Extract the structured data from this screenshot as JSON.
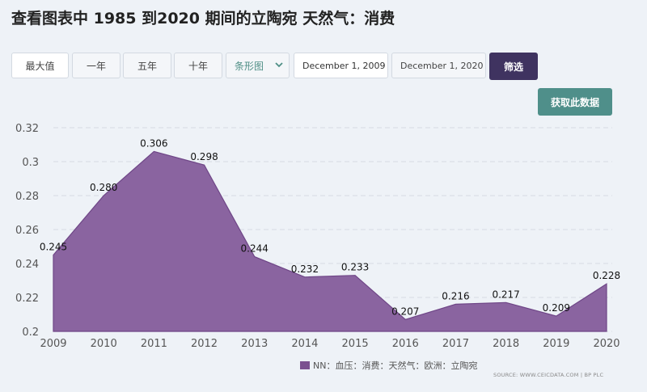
{
  "page": {
    "title": "查看图表中 1985 到2020 期间的立陶宛 天然气：消费"
  },
  "toolbar": {
    "range_buttons": [
      "最大值",
      "一年",
      "五年",
      "十年"
    ],
    "chart_type_select": "条形图",
    "start_date": "December 1, 2009",
    "end_date": "December 1, 2020",
    "filter_label": "筛选",
    "get_data_label": "获取此数据"
  },
  "colors": {
    "series_fill": "#8a64a0",
    "series_stroke": "#6f4687",
    "legend_swatch": "#7b5190",
    "filter_button": "#3f3360",
    "get_data_button": "#4f8f8a"
  },
  "icons": {
    "select_toggle": "chevron-down-icon"
  },
  "chart_data": {
    "type": "area",
    "x": [
      "2009",
      "2010",
      "2011",
      "2012",
      "2013",
      "2014",
      "2015",
      "2016",
      "2017",
      "2018",
      "2019",
      "2020"
    ],
    "series": [
      {
        "name": "NN：血压：消费：天然气：欧洲：立陶宛",
        "values": [
          0.245,
          0.28,
          0.306,
          0.298,
          0.244,
          0.232,
          0.233,
          0.207,
          0.216,
          0.217,
          0.209,
          0.228
        ],
        "labels": [
          "0.245",
          "0.280",
          "0.306",
          "0.298",
          "0.244",
          "0.232",
          "0.233",
          "0.207",
          "0.216",
          "0.217",
          "0.209",
          "0.228"
        ]
      }
    ],
    "y_ticks": [
      "0.32",
      "0.3",
      "0.28",
      "0.26",
      "0.24",
      "0.22",
      "0.2"
    ],
    "ylim": [
      0.2,
      0.32
    ],
    "grid": true,
    "legend_position": "bottom-right",
    "source": "SOURCE: WWW.CEICDATA.COM | BP PLC"
  }
}
